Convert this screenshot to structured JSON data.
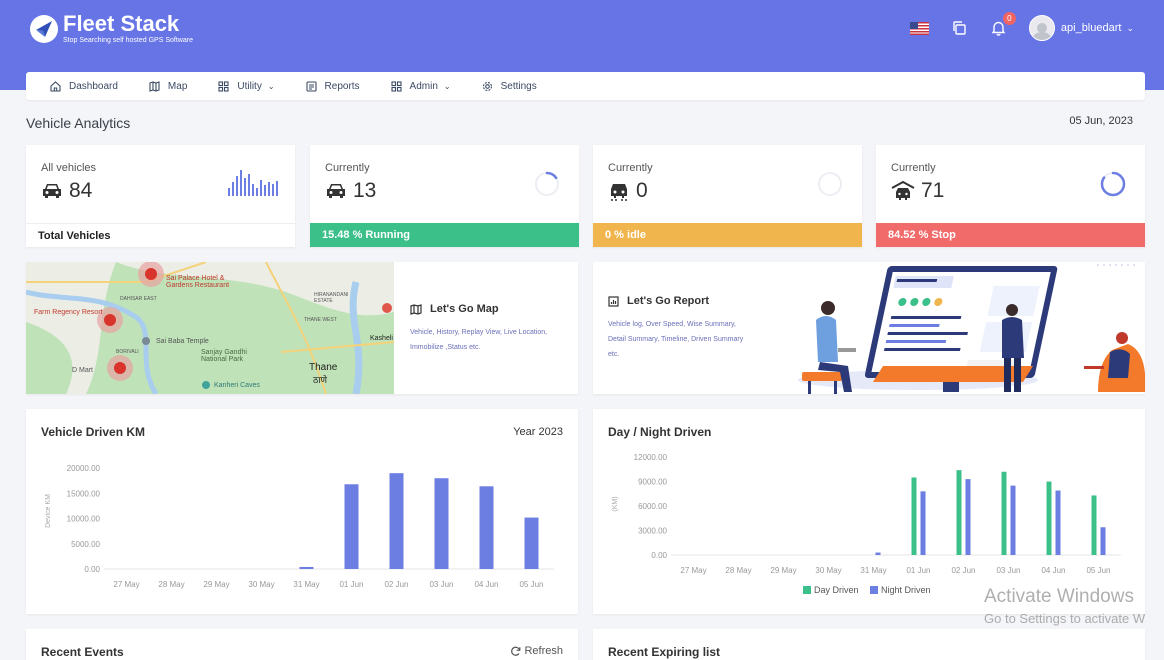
{
  "header": {
    "brand": "Fleet Stack",
    "tagline": "Stop Searching self hosted GPS Software",
    "notification_count": "0",
    "username": "api_bluedart",
    "icons": [
      "flag-us-icon",
      "copy-icon",
      "bell-icon",
      "avatar-icon"
    ]
  },
  "nav": [
    {
      "label": "Dashboard",
      "icon": "home-icon"
    },
    {
      "label": "Map",
      "icon": "map-icon"
    },
    {
      "label": "Utility",
      "icon": "grid-icon",
      "dropdown": true
    },
    {
      "label": "Reports",
      "icon": "report-icon"
    },
    {
      "label": "Admin",
      "icon": "grid-icon",
      "dropdown": true
    },
    {
      "label": "Settings",
      "icon": "gear-icon"
    }
  ],
  "page": {
    "title": "Vehicle Analytics",
    "date": "05 Jun, 2023"
  },
  "stats": [
    {
      "label": "All vehicles",
      "value": "84",
      "footer": "Total Vehicles",
      "color": "#ffffff"
    },
    {
      "label": "Currently",
      "value": "13",
      "footer": "15.48 % Running",
      "color": "#3cc08a",
      "progress": 15.48
    },
    {
      "label": "Currently",
      "value": "0",
      "footer": "0 % idle",
      "color": "#f0b54c",
      "progress": 0
    },
    {
      "label": "Currently",
      "value": "71",
      "footer": "84.52 % Stop",
      "color": "#f26b6b",
      "progress": 84.52
    }
  ],
  "map_promo": {
    "title": "Let's Go Map",
    "desc_line1": "Vehicle, History, Replay View, Live Location,",
    "desc_line2": "Immobilize ,Status etc.",
    "map_labels": {
      "restaurant": "Sai Palace Hotel & Gardens Restaurant",
      "dahisar": "DAHISAR EAST",
      "farm": "Farm Regency Resort",
      "temple": "Sai Baba Temple",
      "park": "Sanjay Gandhi National Park",
      "borivali": "BORIVALI",
      "dmart": "D Mart",
      "caves": "Kanheri Caves",
      "hiranandani": "HIRANANDANI ESTATE",
      "thane_west": "THANE WEST",
      "thane": "Thane",
      "thane_marathi": "ठाणे",
      "kasheli": "Kasheli"
    }
  },
  "report_promo": {
    "title": "Let's Go Report",
    "desc_line1": "Vehicle log, Over Speed, Wise Summary,",
    "desc_line2": "Detail Summary, Timeline, Driven Summary",
    "desc_line3": "etc."
  },
  "chart_data": [
    {
      "type": "bar",
      "title": "Vehicle Driven KM",
      "period": "Year 2023",
      "ylabel": "Device KM",
      "xlabel": "",
      "categories": [
        "27 May",
        "28 May",
        "29 May",
        "30 May",
        "31 May",
        "01 Jun",
        "02 Jun",
        "03 Jun",
        "04 Jun",
        "05 Jun"
      ],
      "series": [
        {
          "values": [
            0,
            0,
            0,
            0,
            400,
            16800,
            19000,
            18000,
            16400,
            10200
          ],
          "color": "#6c7ee1"
        }
      ],
      "yticks": [
        "0.00",
        "5000.00",
        "10000.00",
        "15000.00",
        "20000.00"
      ],
      "ylim": [
        0,
        23000
      ],
      "grid": false
    },
    {
      "type": "bar",
      "title": "Day / Night Driven",
      "ylabel": "(KM)",
      "xlabel": "",
      "categories": [
        "27 May",
        "28 May",
        "29 May",
        "30 May",
        "31 May",
        "01 Jun",
        "02 Jun",
        "03 Jun",
        "04 Jun",
        "05 Jun"
      ],
      "series": [
        {
          "name": "Day Driven",
          "values": [
            0,
            0,
            0,
            0,
            0,
            9500,
            10400,
            10200,
            9000,
            7300
          ],
          "color": "#3cc08a"
        },
        {
          "name": "Night Driven",
          "values": [
            0,
            0,
            0,
            0,
            300,
            7800,
            9300,
            8500,
            7900,
            3400
          ],
          "color": "#6c7ee1"
        }
      ],
      "yticks": [
        "0.00",
        "3000.00",
        "6000.00",
        "9000.00",
        "12000.00"
      ],
      "ylim": [
        0,
        12500
      ],
      "legend": "bottom",
      "grid": false
    }
  ],
  "bottom": {
    "recent_events": "Recent Events",
    "refresh": "Refresh",
    "recent_expiring": "Recent Expiring list"
  },
  "watermark": {
    "line1": "Activate Windows",
    "line2": "Go to Settings to activate W"
  }
}
